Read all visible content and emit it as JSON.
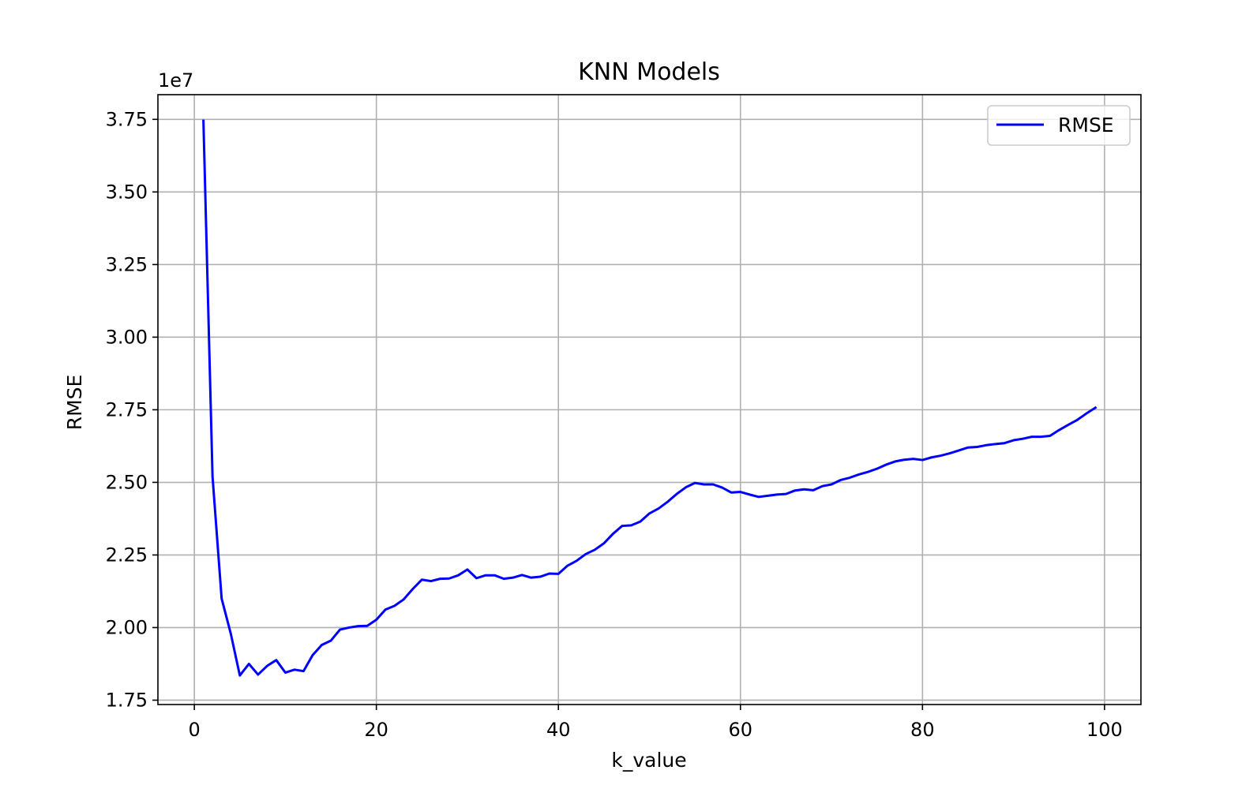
{
  "chart_data": {
    "type": "line",
    "title": "KNN Models",
    "xlabel": "k_value",
    "ylabel": "RMSE",
    "offset_text": "1e7",
    "y_multiplier": 10000000,
    "xlim": [
      -4,
      104
    ],
    "ylim": [
      1.735,
      3.835
    ],
    "x_ticks": [
      0,
      20,
      40,
      60,
      80,
      100
    ],
    "x_tick_labels": [
      "0",
      "20",
      "40",
      "60",
      "80",
      "100"
    ],
    "y_ticks": [
      1.75,
      2.0,
      2.25,
      2.5,
      2.75,
      3.0,
      3.25,
      3.5,
      3.75
    ],
    "y_tick_labels": [
      "1.75",
      "2.00",
      "2.25",
      "2.50",
      "2.75",
      "3.00",
      "3.25",
      "3.50",
      "3.75"
    ],
    "grid": true,
    "legend": {
      "placement": "top-right",
      "entries": [
        "RMSE"
      ]
    },
    "series": [
      {
        "name": "RMSE",
        "color": "#0000ff",
        "x": [
          1,
          2,
          3,
          4,
          5,
          6,
          7,
          8,
          9,
          10,
          11,
          12,
          13,
          14,
          15,
          16,
          17,
          18,
          19,
          20,
          21,
          22,
          23,
          24,
          25,
          26,
          27,
          28,
          29,
          30,
          31,
          32,
          33,
          34,
          35,
          36,
          37,
          38,
          39,
          40,
          41,
          42,
          43,
          44,
          45,
          46,
          47,
          48,
          49,
          50,
          51,
          52,
          53,
          54,
          55,
          56,
          57,
          58,
          59,
          60,
          61,
          62,
          63,
          64,
          65,
          66,
          67,
          68,
          69,
          70,
          71,
          72,
          73,
          74,
          75,
          76,
          77,
          78,
          79,
          80,
          81,
          82,
          83,
          84,
          85,
          86,
          87,
          88,
          89,
          90,
          91,
          92,
          93,
          94,
          95,
          96,
          97,
          98,
          99
        ],
        "values": [
          3.745,
          2.52,
          2.1,
          1.98,
          1.835,
          1.875,
          1.838,
          1.868,
          1.888,
          1.845,
          1.855,
          1.85,
          1.905,
          1.94,
          1.955,
          1.993,
          2.0,
          2.005,
          2.006,
          2.027,
          2.062,
          2.075,
          2.097,
          2.133,
          2.165,
          2.16,
          2.168,
          2.169,
          2.18,
          2.2,
          2.17,
          2.18,
          2.18,
          2.168,
          2.172,
          2.181,
          2.172,
          2.175,
          2.186,
          2.185,
          2.213,
          2.23,
          2.253,
          2.268,
          2.29,
          2.323,
          2.35,
          2.352,
          2.365,
          2.393,
          2.41,
          2.433,
          2.46,
          2.483,
          2.498,
          2.493,
          2.493,
          2.482,
          2.465,
          2.467,
          2.458,
          2.45,
          2.454,
          2.458,
          2.46,
          2.472,
          2.476,
          2.473,
          2.487,
          2.493,
          2.508,
          2.516,
          2.527,
          2.536,
          2.547,
          2.561,
          2.572,
          2.578,
          2.581,
          2.577,
          2.586,
          2.592,
          2.6,
          2.61,
          2.62,
          2.622,
          2.628,
          2.632,
          2.635,
          2.645,
          2.65,
          2.657,
          2.657,
          2.66,
          2.68,
          2.698,
          2.715,
          2.737,
          2.757
        ]
      }
    ]
  }
}
